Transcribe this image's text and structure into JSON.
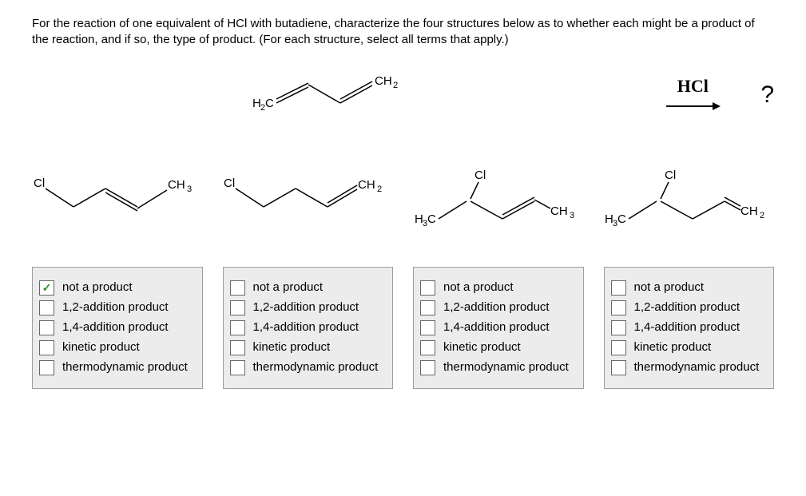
{
  "question_text": "For the reaction of one equivalent of HCl with butadiene, characterize the four structures below as to whether each might be a product of the reaction, and if so, the type of product. (For each structure, select all terms that apply.)",
  "reagent": "HCl",
  "question_mark": "?",
  "option_labels": [
    "not a product",
    "1,2-addition product",
    "1,4-addition product",
    "kinetic product",
    "thermodynamic product"
  ],
  "structures": [
    {
      "checked_index": 0
    },
    {
      "checked_index": -1
    },
    {
      "checked_index": -1
    },
    {
      "checked_index": -1
    }
  ],
  "colors": {
    "box_bg": "#ececec",
    "box_border": "#9e9e9e",
    "checkmark": "#2e8b2e",
    "text": "#000000",
    "bg": "#ffffff"
  }
}
